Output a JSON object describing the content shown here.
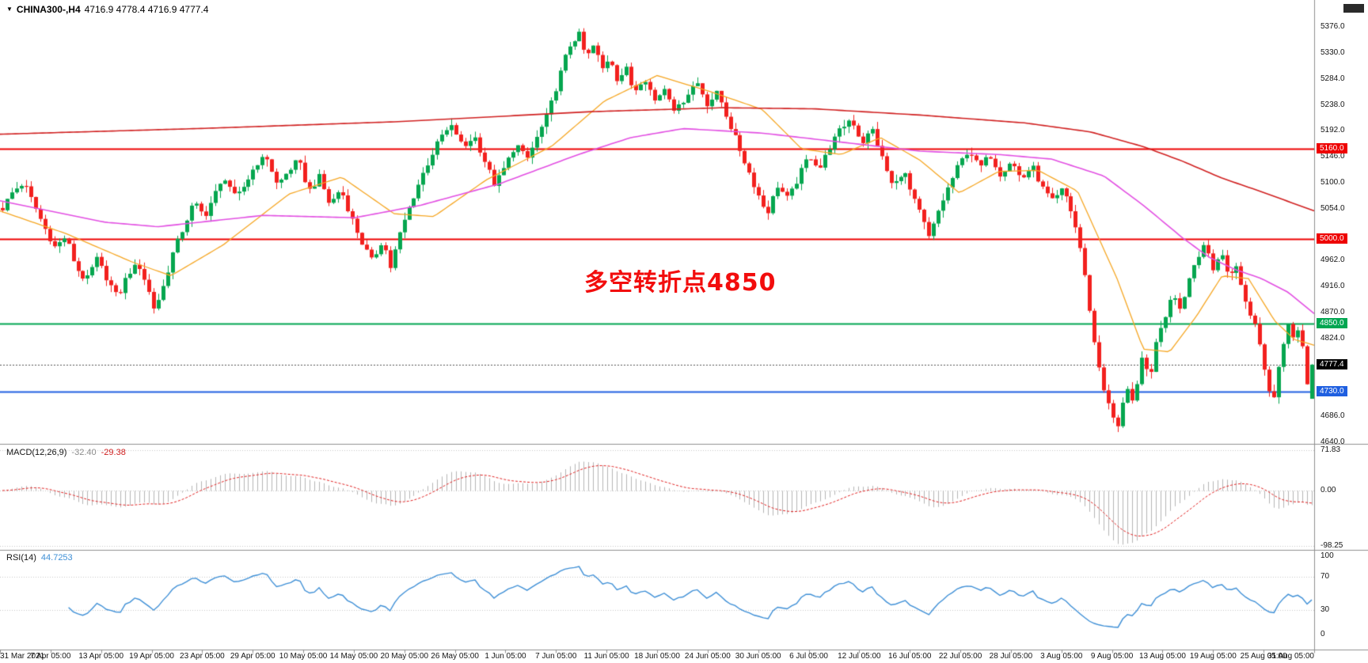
{
  "header": {
    "dropdown_icon": "▼",
    "symbol": "CHINA300-,H4",
    "ohlc": "4716.9 4778.4 4716.9 4777.4"
  },
  "annotation": {
    "text": "多空转折点4850",
    "color": "#f20d0d"
  },
  "current_price": {
    "value": "4777.4",
    "price": 4777.4,
    "label_bg": "#000000",
    "line_color": "#555555"
  },
  "levels": [
    {
      "label": "5160.0",
      "price": 5160,
      "color": "#ee0101"
    },
    {
      "label": "5000.0",
      "price": 5000,
      "color": "#ee0101"
    },
    {
      "label": "4850.0",
      "price": 4850,
      "color": "#00a651"
    },
    {
      "label": "4730.0",
      "price": 4730,
      "color": "#1f5fe0"
    }
  ],
  "price_scale": {
    "labels": [
      {
        "text": "5376.0",
        "price": 5376
      },
      {
        "text": "5330.0",
        "price": 5330
      },
      {
        "text": "5284.0",
        "price": 5284
      },
      {
        "text": "5238.0",
        "price": 5238
      },
      {
        "text": "5192.0",
        "price": 5192
      },
      {
        "text": "5146.0",
        "price": 5146
      },
      {
        "text": "5100.0",
        "price": 5100
      },
      {
        "text": "5054.0",
        "price": 5054
      },
      {
        "text": "4962.0",
        "price": 4962
      },
      {
        "text": "4916.0",
        "price": 4916
      },
      {
        "text": "4870.0",
        "price": 4870
      },
      {
        "text": "4824.0",
        "price": 4824
      },
      {
        "text": "4686.0",
        "price": 4686
      },
      {
        "text": "4640.0",
        "price": 4640
      }
    ]
  },
  "panels": {
    "macd": {
      "name": "MACD(12,26,9)",
      "value_main": "-32.40",
      "value_signal": "-29.38",
      "axis_labels": [
        {
          "text": "71.83",
          "value": 71.83
        },
        {
          "text": "0.00",
          "value": 0
        },
        {
          "text": "-98.25",
          "value": -98.25
        }
      ]
    },
    "rsi": {
      "name": "RSI(14)",
      "value": "44.7253",
      "axis_labels": [
        {
          "text": "100",
          "value": 100
        },
        {
          "text": "70",
          "value": 70
        },
        {
          "text": "30",
          "value": 30
        },
        {
          "text": "0",
          "value": 0
        }
      ]
    }
  },
  "time_axis": {
    "labels": [
      "31 Mar 2021",
      "7 Apr 05:00",
      "13 Apr 05:00",
      "19 Apr 05:00",
      "23 Apr 05:00",
      "29 Apr 05:00",
      "10 May 05:00",
      "14 May 05:00",
      "20 May 05:00",
      "26 May 05:00",
      "1 Jun 05:00",
      "7 Jun 05:00",
      "11 Jun 05:00",
      "18 Jun 05:00",
      "24 Jun 05:00",
      "30 Jun 05:00",
      "6 Jul 05:00",
      "12 Jul 05:00",
      "16 Jul 05:00",
      "22 Jul 05:00",
      "28 Jul 05:00",
      "3 Aug 05:00",
      "9 Aug 05:00",
      "13 Aug 05:00",
      "19 Aug 05:00",
      "25 Aug 05:00",
      "31 Aug 05:00"
    ]
  },
  "chart_data": [
    {
      "type": "candlestick",
      "symbol": "CHINA300-",
      "timeframe": "H4",
      "view_min": 4637,
      "view_max": 5424,
      "candle_count": 278,
      "noise_amp": 6,
      "wick_amp": 13,
      "bull_color": "#06a64f",
      "bear_color": "#f2201e",
      "sampling": "interpolated_from_keypoints",
      "last_ohlc": {
        "open": 4716.9,
        "high": 4778.4,
        "low": 4716.9,
        "close": 4777.4
      },
      "hlines": [
        5160,
        5000,
        4850,
        4730
      ],
      "close_keypoints": [
        [
          0,
          5055
        ],
        [
          0.008,
          5085
        ],
        [
          0.016,
          5100
        ],
        [
          0.024,
          5060
        ],
        [
          0.032,
          5020
        ],
        [
          0.04,
          4985
        ],
        [
          0.048,
          5005
        ],
        [
          0.056,
          4950
        ],
        [
          0.064,
          4925
        ],
        [
          0.072,
          4965
        ],
        [
          0.08,
          4930
        ],
        [
          0.088,
          4895
        ],
        [
          0.096,
          4940
        ],
        [
          0.104,
          4955
        ],
        [
          0.11,
          4920
        ],
        [
          0.116,
          4875
        ],
        [
          0.122,
          4910
        ],
        [
          0.13,
          4975
        ],
        [
          0.138,
          5020
        ],
        [
          0.146,
          5065
        ],
        [
          0.154,
          5040
        ],
        [
          0.162,
          5080
        ],
        [
          0.17,
          5110
        ],
        [
          0.178,
          5070
        ],
        [
          0.186,
          5100
        ],
        [
          0.194,
          5135
        ],
        [
          0.202,
          5145
        ],
        [
          0.21,
          5095
        ],
        [
          0.218,
          5120
        ],
        [
          0.226,
          5140
        ],
        [
          0.234,
          5085
        ],
        [
          0.242,
          5110
        ],
        [
          0.25,
          5060
        ],
        [
          0.258,
          5090
        ],
        [
          0.266,
          5040
        ],
        [
          0.274,
          4995
        ],
        [
          0.282,
          4960
        ],
        [
          0.29,
          5000
        ],
        [
          0.296,
          4950
        ],
        [
          0.304,
          5015
        ],
        [
          0.312,
          5065
        ],
        [
          0.32,
          5110
        ],
        [
          0.328,
          5150
        ],
        [
          0.336,
          5185
        ],
        [
          0.344,
          5200
        ],
        [
          0.352,
          5160
        ],
        [
          0.36,
          5185
        ],
        [
          0.368,
          5140
        ],
        [
          0.376,
          5095
        ],
        [
          0.384,
          5130
        ],
        [
          0.392,
          5170
        ],
        [
          0.4,
          5140
        ],
        [
          0.408,
          5180
        ],
        [
          0.416,
          5220
        ],
        [
          0.424,
          5280
        ],
        [
          0.432,
          5340
        ],
        [
          0.44,
          5365
        ],
        [
          0.446,
          5320
        ],
        [
          0.452,
          5345
        ],
        [
          0.458,
          5300
        ],
        [
          0.464,
          5325
        ],
        [
          0.47,
          5280
        ],
        [
          0.476,
          5305
        ],
        [
          0.482,
          5260
        ],
        [
          0.49,
          5290
        ],
        [
          0.498,
          5245
        ],
        [
          0.506,
          5270
        ],
        [
          0.514,
          5225
        ],
        [
          0.522,
          5255
        ],
        [
          0.53,
          5280
        ],
        [
          0.538,
          5240
        ],
        [
          0.546,
          5260
        ],
        [
          0.554,
          5210
        ],
        [
          0.562,
          5165
        ],
        [
          0.57,
          5120
        ],
        [
          0.578,
          5075
        ],
        [
          0.584,
          5045
        ],
        [
          0.592,
          5095
        ],
        [
          0.6,
          5070
        ],
        [
          0.608,
          5110
        ],
        [
          0.616,
          5150
        ],
        [
          0.624,
          5125
        ],
        [
          0.632,
          5165
        ],
        [
          0.64,
          5195
        ],
        [
          0.648,
          5215
        ],
        [
          0.656,
          5170
        ],
        [
          0.664,
          5195
        ],
        [
          0.672,
          5140
        ],
        [
          0.68,
          5090
        ],
        [
          0.688,
          5125
        ],
        [
          0.694,
          5080
        ],
        [
          0.702,
          5040
        ],
        [
          0.708,
          5000
        ],
        [
          0.714,
          5045
        ],
        [
          0.722,
          5090
        ],
        [
          0.73,
          5130
        ],
        [
          0.738,
          5160
        ],
        [
          0.746,
          5125
        ],
        [
          0.754,
          5150
        ],
        [
          0.762,
          5115
        ],
        [
          0.77,
          5140
        ],
        [
          0.778,
          5105
        ],
        [
          0.786,
          5130
        ],
        [
          0.794,
          5090
        ],
        [
          0.802,
          5065
        ],
        [
          0.81,
          5090
        ],
        [
          0.816,
          5050
        ],
        [
          0.822,
          5000
        ],
        [
          0.828,
          4915
        ],
        [
          0.834,
          4815
        ],
        [
          0.84,
          4745
        ],
        [
          0.846,
          4695
        ],
        [
          0.852,
          4665
        ],
        [
          0.858,
          4745
        ],
        [
          0.864,
          4705
        ],
        [
          0.87,
          4785
        ],
        [
          0.876,
          4755
        ],
        [
          0.882,
          4825
        ],
        [
          0.888,
          4865
        ],
        [
          0.894,
          4905
        ],
        [
          0.9,
          4875
        ],
        [
          0.906,
          4935
        ],
        [
          0.912,
          4965
        ],
        [
          0.918,
          4995
        ],
        [
          0.924,
          4950
        ],
        [
          0.93,
          4975
        ],
        [
          0.936,
          4935
        ],
        [
          0.942,
          4955
        ],
        [
          0.947,
          4905
        ],
        [
          0.952,
          4875
        ],
        [
          0.957,
          4845
        ],
        [
          0.962,
          4795
        ],
        [
          0.966,
          4745
        ],
        [
          0.97,
          4705
        ],
        [
          0.974,
          4765
        ],
        [
          0.978,
          4815
        ],
        [
          0.982,
          4855
        ],
        [
          0.986,
          4825
        ],
        [
          0.99,
          4845
        ],
        [
          0.994,
          4795
        ],
        [
          0.997,
          4725
        ],
        [
          1,
          4777.4
        ]
      ],
      "overlays": [
        {
          "name": "MA-fast",
          "color": "#f5a623",
          "width": 1.3,
          "keypoints": [
            [
              0,
              5050
            ],
            [
              0.05,
              5010
            ],
            [
              0.1,
              4960
            ],
            [
              0.13,
              4935
            ],
            [
              0.17,
              4990
            ],
            [
              0.22,
              5080
            ],
            [
              0.26,
              5110
            ],
            [
              0.3,
              5045
            ],
            [
              0.33,
              5040
            ],
            [
              0.37,
              5105
            ],
            [
              0.42,
              5165
            ],
            [
              0.46,
              5245
            ],
            [
              0.5,
              5290
            ],
            [
              0.54,
              5262
            ],
            [
              0.58,
              5230
            ],
            [
              0.61,
              5160
            ],
            [
              0.64,
              5150
            ],
            [
              0.67,
              5180
            ],
            [
              0.7,
              5140
            ],
            [
              0.73,
              5082
            ],
            [
              0.76,
              5120
            ],
            [
              0.79,
              5122
            ],
            [
              0.82,
              5085
            ],
            [
              0.85,
              4930
            ],
            [
              0.87,
              4805
            ],
            [
              0.89,
              4800
            ],
            [
              0.91,
              4862
            ],
            [
              0.93,
              4935
            ],
            [
              0.95,
              4930
            ],
            [
              0.97,
              4855
            ],
            [
              0.985,
              4822
            ],
            [
              1,
              4812
            ]
          ]
        },
        {
          "name": "MA-mid",
          "color": "#e24fe2",
          "width": 1.6,
          "keypoints": [
            [
              0,
              5068
            ],
            [
              0.08,
              5030
            ],
            [
              0.12,
              5022
            ],
            [
              0.2,
              5042
            ],
            [
              0.27,
              5038
            ],
            [
              0.32,
              5060
            ],
            [
              0.38,
              5098
            ],
            [
              0.44,
              5150
            ],
            [
              0.48,
              5180
            ],
            [
              0.52,
              5196
            ],
            [
              0.58,
              5188
            ],
            [
              0.64,
              5172
            ],
            [
              0.7,
              5156
            ],
            [
              0.76,
              5150
            ],
            [
              0.8,
              5142
            ],
            [
              0.84,
              5112
            ],
            [
              0.87,
              5060
            ],
            [
              0.9,
              5002
            ],
            [
              0.92,
              4968
            ],
            [
              0.94,
              4946
            ],
            [
              0.96,
              4930
            ],
            [
              0.98,
              4906
            ],
            [
              1,
              4868
            ]
          ]
        },
        {
          "name": "MA-slow",
          "color": "#d02020",
          "width": 1.6,
          "keypoints": [
            [
              0,
              5186
            ],
            [
              0.15,
              5196
            ],
            [
              0.3,
              5208
            ],
            [
              0.45,
              5226
            ],
            [
              0.55,
              5233
            ],
            [
              0.62,
              5231
            ],
            [
              0.7,
              5220
            ],
            [
              0.78,
              5206
            ],
            [
              0.83,
              5190
            ],
            [
              0.87,
              5164
            ],
            [
              0.9,
              5138
            ],
            [
              0.93,
              5108
            ],
            [
              0.96,
              5084
            ],
            [
              1,
              5050
            ]
          ]
        }
      ]
    },
    {
      "type": "bar+line",
      "name": "MACD",
      "params": [
        12,
        26,
        9
      ],
      "current": {
        "macd": -32.4,
        "signal": -29.38
      },
      "axis": {
        "max": 71.83,
        "min": -98.25
      },
      "histogram_color": "#b4b4b4",
      "signal_color": "#e02020"
    },
    {
      "type": "line",
      "name": "RSI",
      "period": 14,
      "current": 44.7253,
      "axis": {
        "max": 100,
        "min": 0
      },
      "levels": [
        70,
        30
      ],
      "line_color": "#3e8fd6"
    }
  ]
}
